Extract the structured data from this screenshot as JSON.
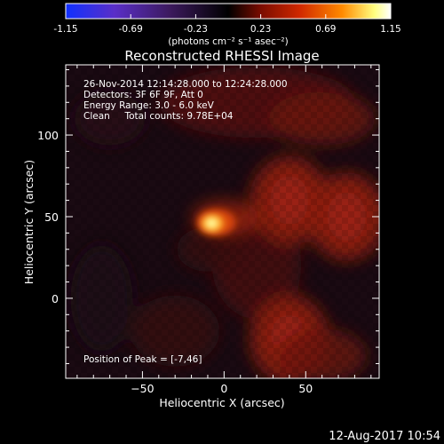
{
  "chart_data": {
    "type": "heatmap",
    "title": "Reconstructed RHESSI Image",
    "xlabel": "Heliocentric X (arcsec)",
    "ylabel": "Heliocentric Y (arcsec)",
    "xlim": [
      -97,
      95
    ],
    "ylim": [
      -49,
      143
    ],
    "xticks": [
      -50,
      0,
      50
    ],
    "yticks": [
      0,
      50,
      100
    ],
    "colorbar": {
      "min": -1.15,
      "max": 1.15,
      "ticks": [
        "-1.15",
        "-0.69",
        "-0.23",
        "0.23",
        "0.69",
        "1.15"
      ],
      "unit_label": "(photons cm⁻² s⁻¹ asec⁻²)",
      "colormap": [
        "#1030ff",
        "#5a2fc8",
        "#3c1a5e",
        "#000000",
        "#7a0c00",
        "#d02800",
        "#ff8a00",
        "#ffff80",
        "#ffffff"
      ]
    },
    "annotations": [
      "26-Nov-2014 12:14:28.000 to 12:24:28.000",
      "Detectors: 3F 6F 9F, Att 0",
      "Energy Range: 3.0 - 6.0 keV",
      "Clean     Total counts: 9.78E+04"
    ],
    "peak": {
      "label": "Position of Peak = [-7,46]",
      "x": -7,
      "y": 46,
      "value": 1.15
    },
    "secondary_emission": [
      {
        "x": 40,
        "y": 60,
        "value": 0.35
      },
      {
        "x": 75,
        "y": 50,
        "value": 0.4
      },
      {
        "x": 40,
        "y": -25,
        "value": 0.3
      }
    ]
  },
  "footer": {
    "timestamp": "12-Aug-2017 10:54"
  }
}
